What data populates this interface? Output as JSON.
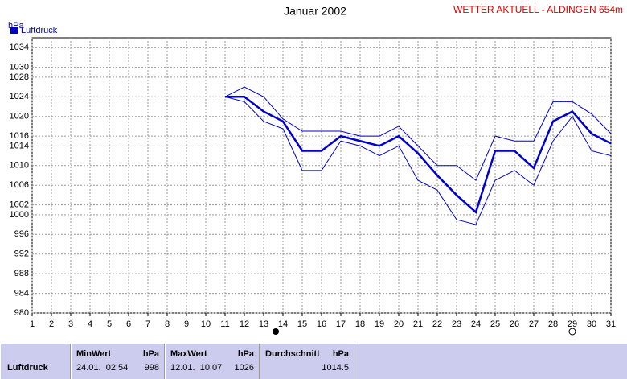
{
  "chart_data": {
    "type": "line",
    "title": "Januar 2002",
    "subtitle": "WETTER AKTUELL - ALDINGEN 654m",
    "y_label": "hPa",
    "x": [
      1,
      2,
      3,
      4,
      5,
      6,
      7,
      8,
      9,
      10,
      11,
      12,
      13,
      14,
      15,
      16,
      17,
      18,
      19,
      20,
      21,
      22,
      23,
      24,
      25,
      26,
      27,
      28,
      29,
      30,
      31
    ],
    "xlim": [
      1,
      31
    ],
    "ylim": [
      980,
      1036
    ],
    "yticks": [
      980,
      984,
      988,
      992,
      996,
      1000,
      1002,
      1006,
      1010,
      1014,
      1016,
      1020,
      1024,
      1028,
      1030,
      1034
    ],
    "grid": true,
    "legend": "top-left",
    "series": [
      {
        "name": "Luftdruck",
        "color": "#0000cc",
        "values": [
          null,
          null,
          null,
          null,
          null,
          null,
          null,
          null,
          null,
          null,
          1024,
          1024,
          1021,
          1019,
          1013,
          1013,
          1016,
          1015,
          1014,
          1016,
          1012.5,
          1008,
          1004,
          1000.5,
          1013,
          1013,
          1009.5,
          1019,
          1021,
          1016.5,
          1014.5
        ]
      },
      {
        "color": "#0000cc",
        "values": [
          null,
          null,
          null,
          null,
          null,
          null,
          null,
          null,
          null,
          null,
          1024,
          1026,
          1024,
          1019.5,
          1017,
          1017,
          1017,
          1016,
          1016,
          1018,
          1014,
          1010,
          1010,
          1007,
          1016,
          1015,
          1015,
          1023,
          1023,
          1020.5,
          1016.5
        ]
      },
      {
        "color": "#0000cc",
        "values": [
          null,
          null,
          null,
          null,
          null,
          null,
          null,
          null,
          null,
          null,
          1024,
          1023,
          1019,
          1017.5,
          1009,
          1009,
          1015,
          1014,
          1012,
          1014,
          1007,
          1005,
          999,
          998,
          1007,
          1009,
          1006,
          1015,
          1020,
          1013,
          1012
        ]
      }
    ]
  },
  "summary": {
    "row_label": "Luftdruck",
    "columns": [
      {
        "title": "MinWert",
        "unit": "hPa",
        "time": "24.01.  02:54",
        "value": 998
      },
      {
        "title": "MaxWert",
        "unit": "hPa",
        "time": "12.01.  10:07",
        "value": 1026
      },
      {
        "title": "Durchschnitt",
        "unit": "hPa",
        "value": 1014.5
      }
    ]
  }
}
